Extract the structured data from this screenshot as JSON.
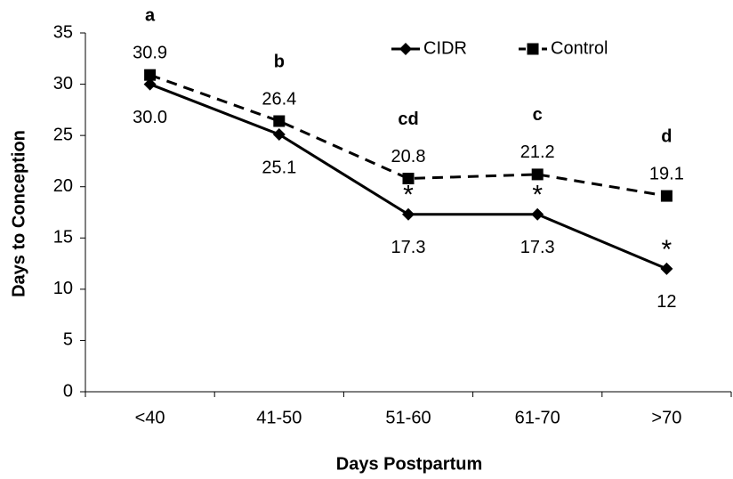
{
  "chart_data": {
    "type": "line",
    "x_label": "Days Postpartum",
    "y_label": "Days to Conception",
    "categories": [
      "<40",
      "41-50",
      "51-60",
      "61-70",
      ">70"
    ],
    "series": [
      {
        "name": "CIDR",
        "color": "#000000",
        "marker": "diamond",
        "line_style": "solid",
        "values": [
          30.0,
          25.1,
          17.3,
          17.3,
          12
        ],
        "value_labels": [
          "30.0",
          "25.1",
          "17.3",
          "17.3",
          "12"
        ],
        "significance": [
          null,
          null,
          "*",
          "*",
          "*"
        ]
      },
      {
        "name": "Control",
        "color": "#000000",
        "marker": "square",
        "line_style": "dashed",
        "values": [
          30.9,
          26.4,
          20.8,
          21.2,
          19.1
        ],
        "value_labels": [
          "30.9",
          "26.4",
          "20.8",
          "21.2",
          "19.1"
        ],
        "letters": [
          "a",
          "b",
          "cd",
          "c",
          "d"
        ]
      }
    ],
    "ylim": [
      0,
      35
    ],
    "yticks": [
      0,
      5,
      10,
      15,
      20,
      25,
      30,
      35
    ],
    "grid": false,
    "legend": "top-right"
  }
}
